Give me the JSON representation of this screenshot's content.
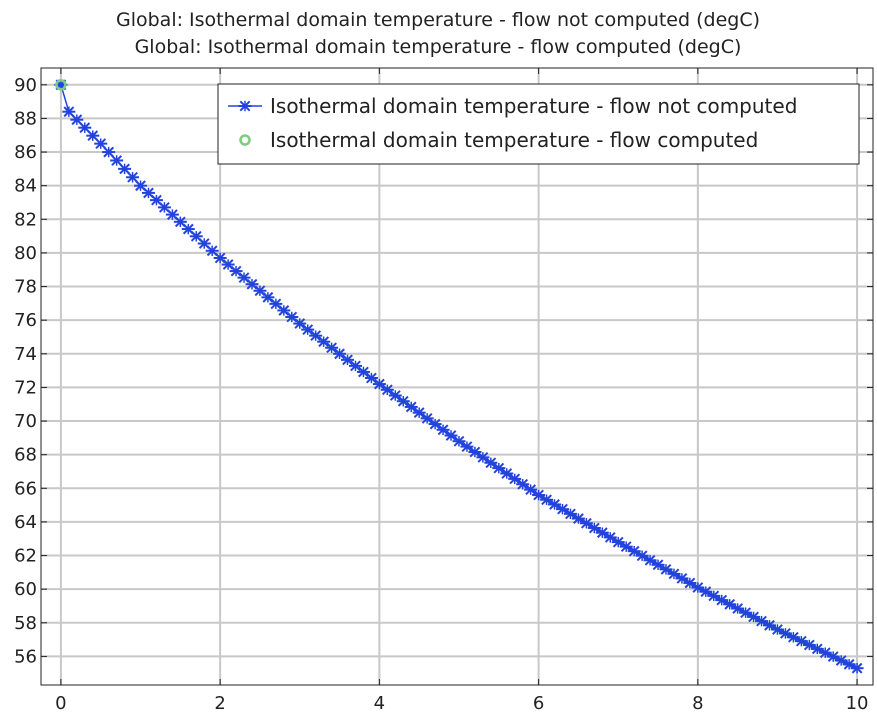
{
  "chart_data": {
    "type": "line",
    "title_lines": [
      "Global: Isothermal domain temperature - flow not computed (degC)",
      "Global: Isothermal domain temperature - flow computed (degC)"
    ],
    "xlabel": "",
    "ylabel": "",
    "xlim": [
      -0.25,
      10.2
    ],
    "ylim": [
      54.3,
      91.0
    ],
    "x_ticks": [
      0,
      2,
      4,
      6,
      8,
      10
    ],
    "y_ticks": [
      56,
      58,
      60,
      62,
      64,
      66,
      68,
      70,
      72,
      74,
      76,
      78,
      80,
      82,
      84,
      86,
      88,
      90
    ],
    "grid": true,
    "legend_position": "top-right",
    "series": [
      {
        "name": "Isothermal domain temperature - flow not computed",
        "color": "#2244dd",
        "marker": "asterisk",
        "x_start": 0,
        "x_step": 0.1,
        "x_end": 10,
        "anchor_points": [
          {
            "x": 0,
            "y": 90.0
          },
          {
            "x": 0.1,
            "y": 88.4
          },
          {
            "x": 0.5,
            "y": 86.5
          },
          {
            "x": 1,
            "y": 84.0
          },
          {
            "x": 2,
            "y": 79.7
          },
          {
            "x": 3,
            "y": 75.8
          },
          {
            "x": 4,
            "y": 72.2
          },
          {
            "x": 5,
            "y": 68.8
          },
          {
            "x": 6,
            "y": 65.6
          },
          {
            "x": 7,
            "y": 62.8
          },
          {
            "x": 8,
            "y": 60.1
          },
          {
            "x": 9,
            "y": 57.6
          },
          {
            "x": 10,
            "y": 55.3
          }
        ]
      },
      {
        "name": "Isothermal domain temperature - flow computed",
        "color": "#7fcc7f",
        "marker": "circle",
        "points": [
          {
            "x": 0,
            "y": 90.0
          }
        ]
      }
    ]
  }
}
